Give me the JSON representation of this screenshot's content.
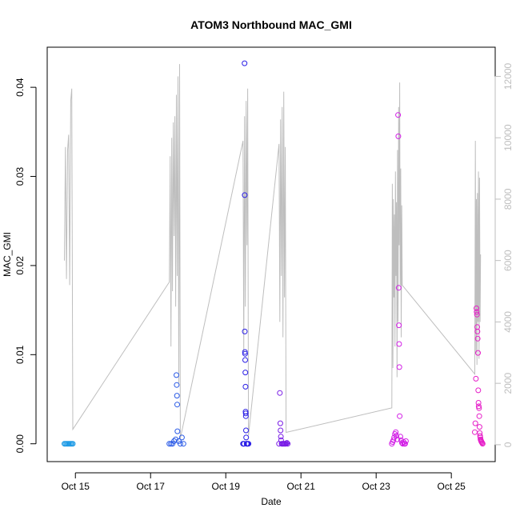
{
  "chart_data": {
    "type": "scatter",
    "title": "ATOM3 Northbound MAC_GMI",
    "xlabel": "Date",
    "ylabel": "MAC_GMI",
    "xlim": [
      "2023-10-14T06:00",
      "2023-10-26T04:00"
    ],
    "ylim": [
      -0.002,
      0.0445
    ],
    "y2lim": [
      -550,
      12950
    ],
    "x_ticks": [
      {
        "date": "2023-10-15",
        "label": "Oct 15"
      },
      {
        "date": "2023-10-17",
        "label": "Oct 17"
      },
      {
        "date": "2023-10-19",
        "label": "Oct 19"
      },
      {
        "date": "2023-10-21",
        "label": "Oct 21"
      },
      {
        "date": "2023-10-23",
        "label": "Oct 23"
      },
      {
        "date": "2023-10-25",
        "label": "Oct 25"
      }
    ],
    "y_ticks": [
      0.0,
      0.01,
      0.02,
      0.03,
      0.04
    ],
    "y_tick_labels": [
      "0.00",
      "0.01",
      "0.02",
      "0.03",
      "0.04"
    ],
    "y2_ticks": [
      0,
      2000,
      4000,
      6000,
      8000,
      10000,
      12000
    ],
    "y2_tick_labels": [
      "0",
      "2000",
      "4000",
      "6000",
      "8000",
      "10000",
      "12000"
    ],
    "grid": false,
    "colors": {
      "line": "#bebebe",
      "frame": "#000000",
      "points_day1": "#1e9be6",
      "points_day2": "#2a5ae6",
      "points_day3": "#2a1ee6",
      "points_day4": "#7a1ee6",
      "points_day5": "#d21ee6",
      "points_day6": "#e61ec8"
    },
    "series": [
      {
        "group": "day1",
        "points": [
          {
            "x": "2023-10-14T17:00",
            "y": 0.0
          },
          {
            "x": "2023-10-14T17:40",
            "y": 0.0
          },
          {
            "x": "2023-10-14T18:20",
            "y": 0.0
          },
          {
            "x": "2023-10-14T19:00",
            "y": 0.0
          },
          {
            "x": "2023-10-14T19:40",
            "y": 0.0
          },
          {
            "x": "2023-10-14T20:20",
            "y": 0.0
          },
          {
            "x": "2023-10-14T21:00",
            "y": 0.0
          },
          {
            "x": "2023-10-14T21:40",
            "y": 0.0
          },
          {
            "x": "2023-10-14T22:20",
            "y": 0.0
          }
        ]
      },
      {
        "group": "day2",
        "points": [
          {
            "x": "2023-10-17T12:00",
            "y": 0.0
          },
          {
            "x": "2023-10-17T13:00",
            "y": 0.0
          },
          {
            "x": "2023-10-17T14:00",
            "y": 0.0
          },
          {
            "x": "2023-10-17T15:00",
            "y": 0.0003
          },
          {
            "x": "2023-10-17T16:00",
            "y": 0.0005
          },
          {
            "x": "2023-10-17T16:30",
            "y": 0.0077
          },
          {
            "x": "2023-10-17T16:40",
            "y": 0.0066
          },
          {
            "x": "2023-10-17T16:50",
            "y": 0.0054
          },
          {
            "x": "2023-10-17T17:00",
            "y": 0.0044
          },
          {
            "x": "2023-10-17T17:10",
            "y": 0.0014
          },
          {
            "x": "2023-10-17T18:00",
            "y": 0.0003
          },
          {
            "x": "2023-10-17T19:00",
            "y": 0.0
          },
          {
            "x": "2023-10-17T20:00",
            "y": 0.0007
          },
          {
            "x": "2023-10-17T21:00",
            "y": 0.0
          }
        ]
      },
      {
        "group": "day3",
        "points": [
          {
            "x": "2023-10-19T11:00",
            "y": 0.0
          },
          {
            "x": "2023-10-19T11:20",
            "y": 0.0
          },
          {
            "x": "2023-10-19T11:40",
            "y": 0.0
          },
          {
            "x": "2023-10-19T12:00",
            "y": 0.0427
          },
          {
            "x": "2023-10-19T12:05",
            "y": 0.0279
          },
          {
            "x": "2023-10-19T12:10",
            "y": 0.0126
          },
          {
            "x": "2023-10-19T12:15",
            "y": 0.0103
          },
          {
            "x": "2023-10-19T12:20",
            "y": 0.0101
          },
          {
            "x": "2023-10-19T12:25",
            "y": 0.0094
          },
          {
            "x": "2023-10-19T12:30",
            "y": 0.008
          },
          {
            "x": "2023-10-19T12:35",
            "y": 0.0064
          },
          {
            "x": "2023-10-19T12:40",
            "y": 0.0036
          },
          {
            "x": "2023-10-19T12:45",
            "y": 0.0034
          },
          {
            "x": "2023-10-19T12:50",
            "y": 0.0031
          },
          {
            "x": "2023-10-19T12:55",
            "y": 0.0015
          },
          {
            "x": "2023-10-19T13:00",
            "y": 0.0007
          },
          {
            "x": "2023-10-19T13:20",
            "y": 0.0
          },
          {
            "x": "2023-10-19T13:40",
            "y": 0.0
          },
          {
            "x": "2023-10-19T14:00",
            "y": 0.0
          },
          {
            "x": "2023-10-19T14:30",
            "y": 0.0
          }
        ]
      },
      {
        "group": "day4",
        "points": [
          {
            "x": "2023-10-20T10:00",
            "y": 0.0
          },
          {
            "x": "2023-10-20T10:30",
            "y": 0.0057
          },
          {
            "x": "2023-10-20T10:50",
            "y": 0.0023
          },
          {
            "x": "2023-10-20T11:00",
            "y": 0.0015
          },
          {
            "x": "2023-10-20T11:10",
            "y": 0.0008
          },
          {
            "x": "2023-10-20T11:20",
            "y": 0.0004
          },
          {
            "x": "2023-10-20T11:40",
            "y": 0.0
          },
          {
            "x": "2023-10-20T12:00",
            "y": 0.0
          },
          {
            "x": "2023-10-20T12:30",
            "y": 0.0
          },
          {
            "x": "2023-10-20T13:00",
            "y": 0.0
          },
          {
            "x": "2023-10-20T13:30",
            "y": 0.0
          },
          {
            "x": "2023-10-20T14:00",
            "y": 0.0
          },
          {
            "x": "2023-10-20T14:30",
            "y": 0.0
          },
          {
            "x": "2023-10-20T15:00",
            "y": 0.0001
          },
          {
            "x": "2023-10-20T15:30",
            "y": 0.0
          }
        ]
      },
      {
        "group": "day5",
        "points": [
          {
            "x": "2023-10-23T10:00",
            "y": 0.0
          },
          {
            "x": "2023-10-23T10:30",
            "y": 0.0002
          },
          {
            "x": "2023-10-23T11:00",
            "y": 0.0004
          },
          {
            "x": "2023-10-23T11:30",
            "y": 0.0007
          },
          {
            "x": "2023-10-23T12:00",
            "y": 0.0011
          },
          {
            "x": "2023-10-23T12:30",
            "y": 0.0013
          },
          {
            "x": "2023-10-23T13:00",
            "y": 0.0009
          },
          {
            "x": "2023-10-23T13:30",
            "y": 0.0005
          },
          {
            "x": "2023-10-23T14:00",
            "y": 0.0369
          },
          {
            "x": "2023-10-23T14:10",
            "y": 0.0345
          },
          {
            "x": "2023-10-23T14:20",
            "y": 0.0175
          },
          {
            "x": "2023-10-23T14:30",
            "y": 0.0133
          },
          {
            "x": "2023-10-23T14:40",
            "y": 0.0112
          },
          {
            "x": "2023-10-23T14:50",
            "y": 0.0086
          },
          {
            "x": "2023-10-23T15:00",
            "y": 0.0031
          },
          {
            "x": "2023-10-23T15:30",
            "y": 0.0008
          },
          {
            "x": "2023-10-23T16:00",
            "y": 0.0004
          },
          {
            "x": "2023-10-23T16:30",
            "y": 0.0001
          },
          {
            "x": "2023-10-23T17:00",
            "y": 0.0
          },
          {
            "x": "2023-10-23T17:30",
            "y": 0.0002
          },
          {
            "x": "2023-10-23T18:00",
            "y": 0.0
          },
          {
            "x": "2023-10-23T18:30",
            "y": 0.0
          },
          {
            "x": "2023-10-23T19:00",
            "y": 0.0003
          }
        ]
      },
      {
        "group": "day6",
        "points": [
          {
            "x": "2023-10-25T15:00",
            "y": 0.0013
          },
          {
            "x": "2023-10-25T15:20",
            "y": 0.0023
          },
          {
            "x": "2023-10-25T15:40",
            "y": 0.0073
          },
          {
            "x": "2023-10-25T16:00",
            "y": 0.0152
          },
          {
            "x": "2023-10-25T16:10",
            "y": 0.0148
          },
          {
            "x": "2023-10-25T16:20",
            "y": 0.0145
          },
          {
            "x": "2023-10-25T16:30",
            "y": 0.0131
          },
          {
            "x": "2023-10-25T16:40",
            "y": 0.0126
          },
          {
            "x": "2023-10-25T16:50",
            "y": 0.0118
          },
          {
            "x": "2023-10-25T17:00",
            "y": 0.0102
          },
          {
            "x": "2023-10-25T17:10",
            "y": 0.006
          },
          {
            "x": "2023-10-25T17:20",
            "y": 0.0046
          },
          {
            "x": "2023-10-25T17:30",
            "y": 0.0042
          },
          {
            "x": "2023-10-25T17:40",
            "y": 0.004
          },
          {
            "x": "2023-10-25T17:50",
            "y": 0.0031
          },
          {
            "x": "2023-10-25T18:00",
            "y": 0.0019
          },
          {
            "x": "2023-10-25T18:10",
            "y": 0.0012
          },
          {
            "x": "2023-10-25T18:20",
            "y": 0.0009
          },
          {
            "x": "2023-10-25T18:30",
            "y": 0.0007
          },
          {
            "x": "2023-10-25T18:40",
            "y": 0.0005
          },
          {
            "x": "2023-10-25T18:50",
            "y": 0.0004
          },
          {
            "x": "2023-10-25T19:00",
            "y": 0.0003
          },
          {
            "x": "2023-10-25T19:20",
            "y": 0.0002
          },
          {
            "x": "2023-10-25T19:40",
            "y": 0.0001
          },
          {
            "x": "2023-10-25T20:00",
            "y": 0.0
          }
        ]
      }
    ],
    "line_series": {
      "axis": "right",
      "points": [
        {
          "x": "2023-10-14T17:00",
          "y": 6000
        },
        {
          "x": "2023-10-14T17:40",
          "y": 9700
        },
        {
          "x": "2023-10-14T18:20",
          "y": 5400
        },
        {
          "x": "2023-10-14T19:00",
          "y": 9600
        },
        {
          "x": "2023-10-14T19:40",
          "y": 10100
        },
        {
          "x": "2023-10-14T20:20",
          "y": 5200
        },
        {
          "x": "2023-10-14T21:00",
          "y": 11200
        },
        {
          "x": "2023-10-14T21:40",
          "y": 11600
        },
        {
          "x": "2023-10-14T22:20",
          "y": 500
        },
        {
          "x": "2023-10-17T12:00",
          "y": 5300
        },
        {
          "x": "2023-10-17T12:30",
          "y": 9400
        },
        {
          "x": "2023-10-17T13:00",
          "y": 3200
        },
        {
          "x": "2023-10-17T13:30",
          "y": 10000
        },
        {
          "x": "2023-10-17T14:00",
          "y": 5000
        },
        {
          "x": "2023-10-17T14:30",
          "y": 10500
        },
        {
          "x": "2023-10-17T15:00",
          "y": 6800
        },
        {
          "x": "2023-10-17T15:30",
          "y": 10700
        },
        {
          "x": "2023-10-17T16:00",
          "y": 4500
        },
        {
          "x": "2023-10-17T16:30",
          "y": 11400
        },
        {
          "x": "2023-10-17T17:00",
          "y": 5500
        },
        {
          "x": "2023-10-17T17:30",
          "y": 12000
        },
        {
          "x": "2023-10-17T18:00",
          "y": 2000
        },
        {
          "x": "2023-10-17T18:30",
          "y": 12400
        },
        {
          "x": "2023-10-17T19:00",
          "y": 200
        },
        {
          "x": "2023-10-19T11:00",
          "y": 9900
        },
        {
          "x": "2023-10-19T11:30",
          "y": 3000
        },
        {
          "x": "2023-10-19T12:00",
          "y": 10700
        },
        {
          "x": "2023-10-19T12:30",
          "y": 4500
        },
        {
          "x": "2023-10-19T13:00",
          "y": 11200
        },
        {
          "x": "2023-10-19T13:30",
          "y": 6500
        },
        {
          "x": "2023-10-19T14:00",
          "y": 11600
        },
        {
          "x": "2023-10-19T14:30",
          "y": 300
        },
        {
          "x": "2023-10-20T10:00",
          "y": 9800
        },
        {
          "x": "2023-10-20T10:30",
          "y": 4000
        },
        {
          "x": "2023-10-20T11:00",
          "y": 10600
        },
        {
          "x": "2023-10-20T11:30",
          "y": 5500
        },
        {
          "x": "2023-10-20T12:00",
          "y": 11000
        },
        {
          "x": "2023-10-20T12:30",
          "y": 3500
        },
        {
          "x": "2023-10-20T13:00",
          "y": 11500
        },
        {
          "x": "2023-10-20T13:30",
          "y": 4800
        },
        {
          "x": "2023-10-20T14:00",
          "y": 9700
        },
        {
          "x": "2023-10-20T14:30",
          "y": 400
        },
        {
          "x": "2023-10-23T10:00",
          "y": 1200
        },
        {
          "x": "2023-10-23T10:20",
          "y": 8500
        },
        {
          "x": "2023-10-23T10:40",
          "y": 2500
        },
        {
          "x": "2023-10-23T11:00",
          "y": 8000
        },
        {
          "x": "2023-10-23T11:20",
          "y": 4800
        },
        {
          "x": "2023-10-23T11:40",
          "y": 7500
        },
        {
          "x": "2023-10-23T12:00",
          "y": 3200
        },
        {
          "x": "2023-10-23T12:20",
          "y": 8900
        },
        {
          "x": "2023-10-23T12:40",
          "y": 5500
        },
        {
          "x": "2023-10-23T13:00",
          "y": 7900
        },
        {
          "x": "2023-10-23T13:20",
          "y": 2200
        },
        {
          "x": "2023-10-23T13:40",
          "y": 9600
        },
        {
          "x": "2023-10-23T14:00",
          "y": 4000
        },
        {
          "x": "2023-10-23T14:20",
          "y": 11000
        },
        {
          "x": "2023-10-23T14:40",
          "y": 6500
        },
        {
          "x": "2023-10-23T15:00",
          "y": 11800
        },
        {
          "x": "2023-10-23T15:20",
          "y": 5200
        },
        {
          "x": "2023-10-23T15:40",
          "y": 9000
        },
        {
          "x": "2023-10-23T16:00",
          "y": 3500
        },
        {
          "x": "2023-10-23T16:20",
          "y": 7800
        },
        {
          "x": "2023-10-23T16:40",
          "y": 5200
        },
        {
          "x": "2023-10-25T15:00",
          "y": 2300
        },
        {
          "x": "2023-10-25T15:20",
          "y": 9900
        },
        {
          "x": "2023-10-25T15:40",
          "y": 3000
        },
        {
          "x": "2023-10-25T16:00",
          "y": 8000
        },
        {
          "x": "2023-10-25T16:20",
          "y": 2600
        },
        {
          "x": "2023-10-25T16:40",
          "y": 8200
        },
        {
          "x": "2023-10-25T17:00",
          "y": 4000
        },
        {
          "x": "2023-10-25T17:20",
          "y": 8900
        },
        {
          "x": "2023-10-25T17:40",
          "y": 2800
        },
        {
          "x": "2023-10-25T18:00",
          "y": 8700
        },
        {
          "x": "2023-10-25T18:20",
          "y": 4000
        },
        {
          "x": "2023-10-25T18:40",
          "y": 6200
        }
      ]
    }
  }
}
